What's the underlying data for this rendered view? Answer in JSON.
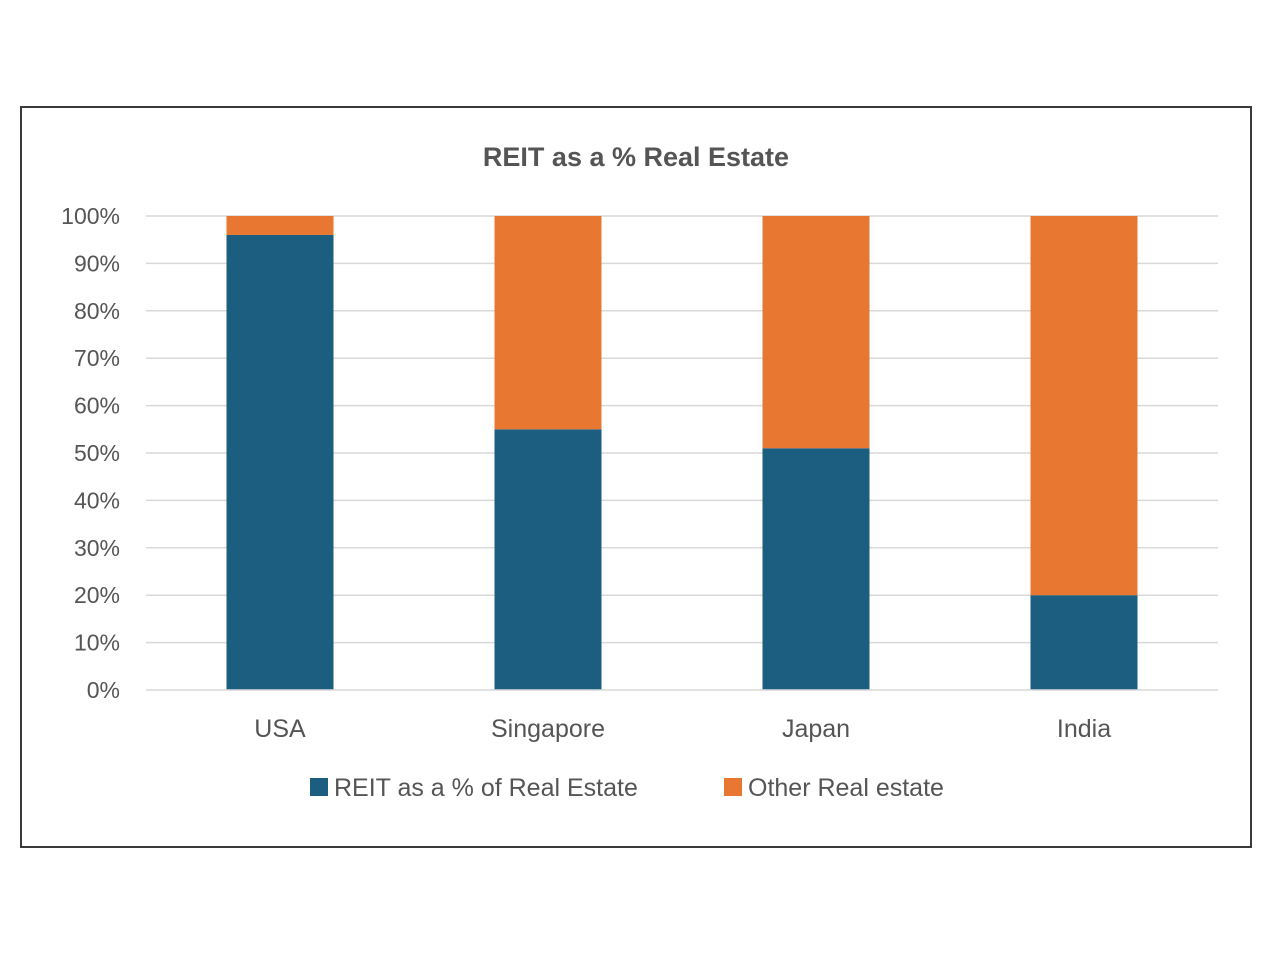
{
  "chart_data": {
    "type": "bar",
    "stacked": true,
    "title": "REIT as a % Real Estate",
    "categories": [
      "USA",
      "Singapore",
      "Japan",
      "India"
    ],
    "series": [
      {
        "name": "REIT as a % of Real Estate",
        "color": "#1b5e80",
        "values": [
          96,
          55,
          51,
          20
        ]
      },
      {
        "name": "Other Real estate",
        "color": "#e87731",
        "values": [
          4,
          45,
          49,
          80
        ]
      }
    ],
    "ylim": [
      0,
      100
    ],
    "yticks": [
      "0%",
      "10%",
      "20%",
      "30%",
      "40%",
      "50%",
      "60%",
      "70%",
      "80%",
      "90%",
      "100%"
    ],
    "ytick_values": [
      0,
      10,
      20,
      30,
      40,
      50,
      60,
      70,
      80,
      90,
      100
    ],
    "xlabel": "",
    "ylabel": "",
    "grid": true,
    "legend": "bottom"
  }
}
